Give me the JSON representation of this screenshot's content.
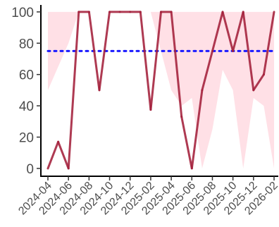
{
  "chart_data": {
    "type": "line",
    "title": "",
    "xlabel": "",
    "ylabel": "",
    "ylim": [
      -5,
      104
    ],
    "xlim": [
      "2024-04",
      "2026-02"
    ],
    "x_ticks": [
      "2024-04",
      "2024-06",
      "2024-08",
      "2024-10",
      "2024-12",
      "2025-02",
      "2025-04",
      "2025-06",
      "2025-08",
      "2025-10",
      "2025-12",
      "2026-02"
    ],
    "y_ticks": [
      0,
      20,
      40,
      60,
      80,
      100
    ],
    "reference_line": {
      "y": 75,
      "style": "dotted",
      "color": "#1a1aff"
    },
    "colors": {
      "line": "#a31f3a",
      "band": "#ffe0e6",
      "axis": "#000000"
    },
    "x": [
      "2024-04",
      "2024-05",
      "2024-06",
      "2024-07",
      "2024-08",
      "2024-09",
      "2024-10",
      "2024-11",
      "2024-12",
      "2025-01",
      "2025-02",
      "2025-03",
      "2025-04",
      "2025-05",
      "2025-06",
      "2025-07",
      "2025-08",
      "2025-09",
      "2025-10",
      "2025-11",
      "2025-12",
      "2026-01",
      "2026-02"
    ],
    "series": [
      {
        "values": [
          0,
          17,
          0,
          100,
          100,
          50,
          100,
          100,
          100,
          100,
          37.5,
          100,
          100,
          33,
          0,
          50,
          75,
          100,
          75,
          100,
          50,
          60,
          100
        ]
      }
    ],
    "band": {
      "x": [
        "2024-04",
        "2024-06",
        "2024-07",
        "2025-02",
        "2025-03",
        "2025-04",
        "2025-05",
        "2025-06",
        "2025-07",
        "2025-08",
        "2025-09",
        "2025-10",
        "2025-11",
        "2025-12",
        "2026-01",
        "2026-02"
      ],
      "lower": [
        50,
        80,
        100,
        100,
        75,
        50,
        40,
        45,
        0,
        25,
        63,
        50,
        0,
        45,
        40,
        0
      ],
      "upper": [
        100,
        100,
        100,
        100,
        100,
        100,
        100,
        100,
        100,
        100,
        100,
        100,
        100,
        100,
        100,
        100
      ]
    }
  }
}
